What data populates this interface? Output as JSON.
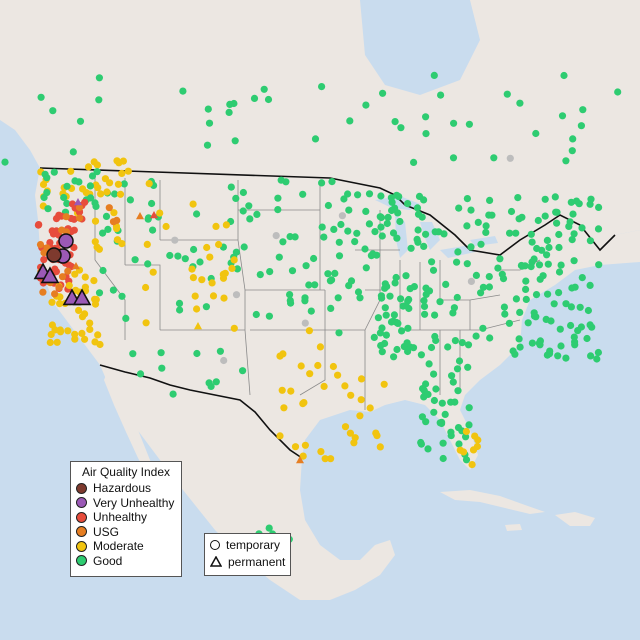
{
  "legend": {
    "title": "Air Quality Index",
    "categories": [
      {
        "label": "Hazardous",
        "color": "#7e3a2e"
      },
      {
        "label": "Very Unhealthy",
        "color": "#9b59b6"
      },
      {
        "label": "Unhealthy",
        "color": "#e74c3c"
      },
      {
        "label": "USG",
        "color": "#e67e22"
      },
      {
        "label": "Moderate",
        "color": "#f1c40f"
      },
      {
        "label": "Good",
        "color": "#2ecc71"
      }
    ],
    "types": [
      {
        "label": "temporary",
        "symbol": "circle"
      },
      {
        "label": "permanent",
        "symbol": "triangle"
      }
    ]
  },
  "colors": {
    "ocean": "#c9dcee",
    "land": "#ece7e2",
    "state_border": "#8a8a8a",
    "country_border": "#111111",
    "missing": "#bdbdbd"
  }
}
